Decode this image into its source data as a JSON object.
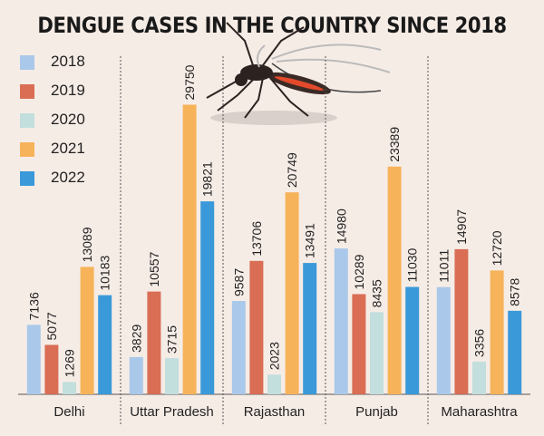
{
  "title": "DENGUE CASES IN THE COUNTRY SINCE 2018",
  "colors": {
    "2018": "#a9c8ea",
    "2019": "#d96e55",
    "2020": "#c2dedd",
    "2021": "#f6b35a",
    "2022": "#3a9ad9",
    "background": "#f6ece6",
    "text": "#222222",
    "divider": "#555555"
  },
  "chart_data": {
    "type": "bar",
    "title": "DENGUE CASES IN THE COUNTRY SINCE 2018",
    "xlabel": "",
    "ylabel": "",
    "categories": [
      "Delhi",
      "Uttar Pradesh",
      "Rajasthan",
      "Punjab",
      "Maharashtra"
    ],
    "series": [
      {
        "name": "2018",
        "values": [
          7136,
          3829,
          9587,
          14980,
          11011
        ]
      },
      {
        "name": "2019",
        "values": [
          5077,
          10557,
          13706,
          10289,
          14907
        ]
      },
      {
        "name": "2020",
        "values": [
          1269,
          3715,
          2023,
          8435,
          3356
        ]
      },
      {
        "name": "2021",
        "values": [
          13089,
          29750,
          20749,
          23389,
          12720
        ]
      },
      {
        "name": "2022",
        "values": [
          10183,
          19821,
          13491,
          11030,
          8578
        ]
      }
    ],
    "ylim": [
      0,
      33000
    ],
    "grid": false,
    "legend_position": "top-left"
  },
  "legend": [
    {
      "label": "2018",
      "color": "#a9c8ea"
    },
    {
      "label": "2019",
      "color": "#d96e55"
    },
    {
      "label": "2020",
      "color": "#c2dedd"
    },
    {
      "label": "2021",
      "color": "#f6b35a"
    },
    {
      "label": "2022",
      "color": "#3a9ad9"
    }
  ],
  "illustration": {
    "icon": "mosquito-icon"
  }
}
